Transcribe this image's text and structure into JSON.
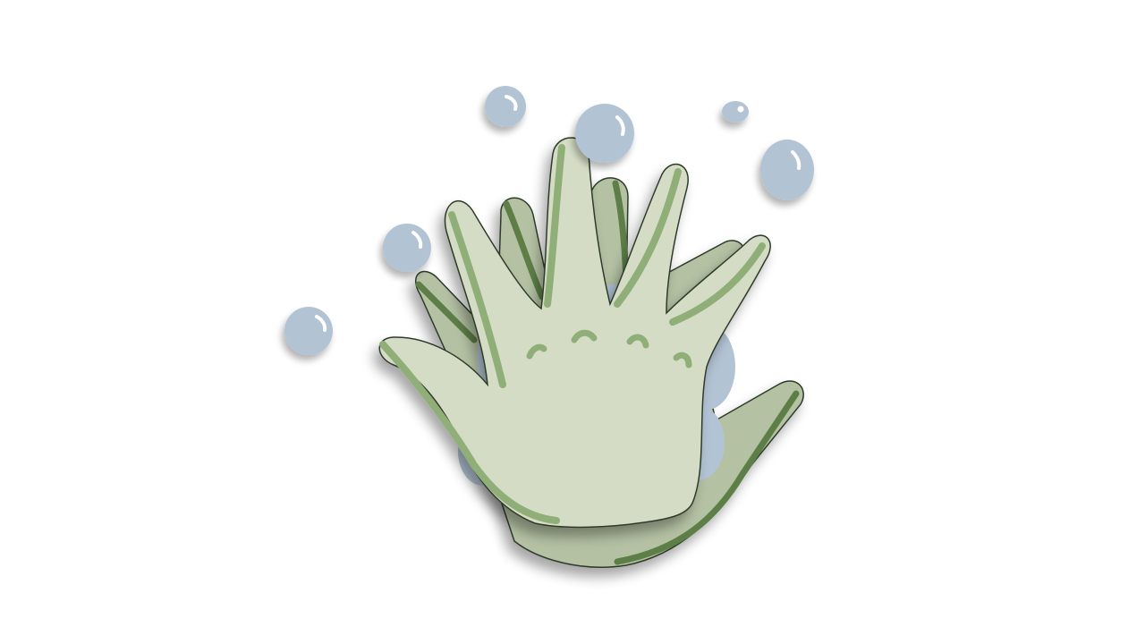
{
  "illustration": {
    "subject": "washing-hands-with-soap-bubbles",
    "colors": {
      "background": "#ffffff",
      "hand_front_fill": "#d5dcc6",
      "hand_back_fill": "#b4c1a3",
      "hand_stroke": "#2f3b2a",
      "hand_edge_light": "#8fae78",
      "hand_edge_dark": "#5d7f47",
      "knuckle": "#8fae78",
      "bubble_fill": "#b2c3d4",
      "bubble_highlight": "#ffffff",
      "shadow": "#000000"
    },
    "bubble_count": 11
  }
}
